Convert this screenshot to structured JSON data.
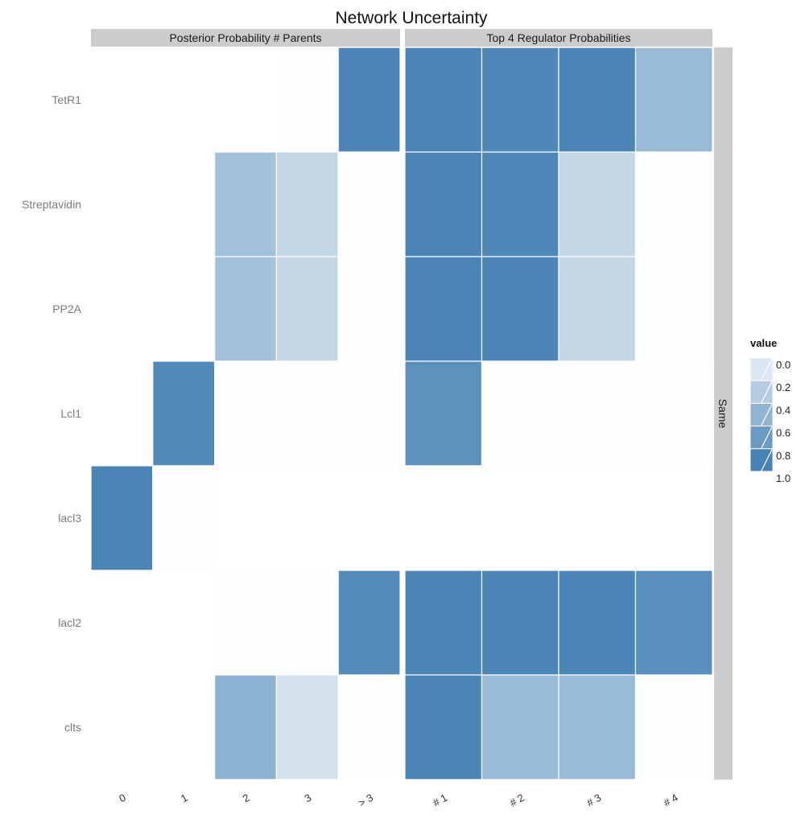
{
  "chart_data": {
    "type": "heatmap",
    "title": "Network Uncertainty",
    "panels": [
      {
        "strip": "Posterior Probability # Parents",
        "columns": [
          "0",
          "1",
          "2",
          "3",
          "> 3"
        ]
      },
      {
        "strip": "Top 4 Regulator Probabilities",
        "columns": [
          "# 1",
          "# 2",
          "# 3",
          "# 4"
        ]
      }
    ],
    "row_strip": "Same",
    "rows": [
      "TetR1",
      "Streptavidin",
      "PP2A",
      "Lcl1",
      "lacl3",
      "lacl2",
      "clts"
    ],
    "values": [
      [
        0.0,
        0.0,
        0.0,
        0.02,
        0.97,
        0.97,
        0.95,
        0.98,
        0.55
      ],
      [
        0.0,
        0.0,
        0.5,
        0.33,
        0.02,
        0.98,
        0.96,
        0.33,
        0.02
      ],
      [
        0.0,
        0.0,
        0.5,
        0.33,
        0.02,
        0.98,
        0.98,
        0.33,
        0.02
      ],
      [
        0.0,
        0.94,
        0.02,
        0.01,
        0.01,
        0.88,
        0.02,
        0.01,
        0.01
      ],
      [
        0.98,
        0.01,
        0.0,
        0.0,
        0.0,
        0.0,
        0.0,
        0.0,
        0.0
      ],
      [
        0.0,
        0.0,
        0.01,
        0.02,
        0.93,
        0.97,
        0.97,
        0.97,
        0.9
      ],
      [
        0.0,
        0.0,
        0.62,
        0.24,
        0.01,
        0.98,
        0.55,
        0.55,
        0.01
      ]
    ],
    "legend": {
      "title": "value",
      "breaks": [
        "0.0",
        "0.2",
        "0.4",
        "0.6",
        "0.8",
        "1.0"
      ]
    },
    "colors": {
      "low": "#ffffff",
      "high": "#4682b4",
      "strip_bg": "#cccccc"
    }
  }
}
